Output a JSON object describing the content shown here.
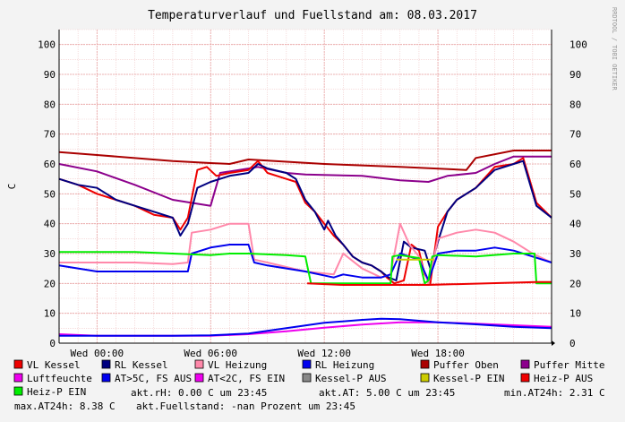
{
  "chart_data": {
    "type": "line",
    "title": "Temperaturverlauf und Fuellstand am: 08.03.2017",
    "ylabel": "C",
    "watermark": "RRDTOOL / TOBI OETIKER",
    "ylim": [
      0,
      105
    ],
    "yticks": [
      0,
      10,
      20,
      30,
      40,
      50,
      60,
      70,
      80,
      90,
      100
    ],
    "xlim": [
      -2,
      24
    ],
    "xticks": [
      {
        "x": 0,
        "label": "Wed 00:00"
      },
      {
        "x": 6,
        "label": "Wed 06:00"
      },
      {
        "x": 12,
        "label": "Wed 12:00"
      },
      {
        "x": 18,
        "label": "Wed 18:00"
      }
    ],
    "series": [
      {
        "name": "Puffer Oben",
        "color": "#aa0000",
        "points": [
          [
            -2,
            64
          ],
          [
            0,
            63
          ],
          [
            4,
            61
          ],
          [
            6,
            60.3
          ],
          [
            7,
            60
          ],
          [
            8,
            61.5
          ],
          [
            12,
            60
          ],
          [
            16,
            59
          ],
          [
            19.5,
            58
          ],
          [
            20,
            62
          ],
          [
            22,
            64.5
          ],
          [
            24,
            64.5
          ]
        ]
      },
      {
        "name": "Puffer Mitte",
        "color": "#8c008c",
        "points": [
          [
            -2,
            60
          ],
          [
            0,
            57.5
          ],
          [
            2,
            53
          ],
          [
            4,
            48
          ],
          [
            6,
            46
          ],
          [
            6.5,
            57
          ],
          [
            7.5,
            58
          ],
          [
            8.5,
            59
          ],
          [
            10,
            57
          ],
          [
            11,
            56.5
          ],
          [
            14,
            56
          ],
          [
            16,
            54.5
          ],
          [
            17.5,
            54
          ],
          [
            18.5,
            56
          ],
          [
            20,
            57
          ],
          [
            21,
            60
          ],
          [
            22,
            62.5
          ],
          [
            24,
            62.5
          ]
        ]
      },
      {
        "name": "VL Kessel",
        "color": "#ee0000",
        "points": [
          [
            -2,
            55
          ],
          [
            -1,
            53
          ],
          [
            0,
            50
          ],
          [
            1,
            48
          ],
          [
            2,
            46
          ],
          [
            3,
            43
          ],
          [
            4,
            42
          ],
          [
            4.4,
            38
          ],
          [
            4.8,
            42
          ],
          [
            5.3,
            58
          ],
          [
            5.8,
            59
          ],
          [
            6.3,
            56
          ],
          [
            7,
            57
          ],
          [
            8,
            58
          ],
          [
            8.5,
            61
          ],
          [
            9,
            57
          ],
          [
            10,
            55
          ],
          [
            10.5,
            54
          ],
          [
            11,
            47
          ],
          [
            11.5,
            44
          ],
          [
            12,
            40
          ],
          [
            12.5,
            36
          ],
          [
            13,
            33
          ],
          [
            13.5,
            29
          ],
          [
            14,
            27
          ],
          [
            14.5,
            26
          ],
          [
            15,
            24
          ],
          [
            15.3,
            22
          ],
          [
            15.7,
            20
          ],
          [
            16.2,
            21
          ],
          [
            16.6,
            33
          ],
          [
            17,
            31
          ],
          [
            17.3,
            23
          ],
          [
            17.6,
            20
          ],
          [
            18,
            39
          ],
          [
            18.5,
            44
          ],
          [
            19,
            48
          ],
          [
            20,
            52
          ],
          [
            21,
            59
          ],
          [
            22,
            60
          ],
          [
            22.5,
            62
          ],
          [
            23.2,
            47
          ],
          [
            24,
            42
          ]
        ]
      },
      {
        "name": "RL Kessel",
        "color": "#000080",
        "points": [
          [
            -2,
            55
          ],
          [
            -1,
            53
          ],
          [
            0,
            52
          ],
          [
            1,
            48
          ],
          [
            2,
            46
          ],
          [
            3,
            44
          ],
          [
            4,
            42
          ],
          [
            4.4,
            36
          ],
          [
            4.8,
            40
          ],
          [
            5.3,
            52
          ],
          [
            6,
            54
          ],
          [
            7,
            56
          ],
          [
            8,
            57
          ],
          [
            8.5,
            60
          ],
          [
            9,
            58.5
          ],
          [
            10,
            57
          ],
          [
            10.5,
            55
          ],
          [
            11,
            48
          ],
          [
            11.5,
            44
          ],
          [
            12,
            38
          ],
          [
            12.2,
            41
          ],
          [
            12.6,
            36
          ],
          [
            13,
            33
          ],
          [
            13.5,
            29
          ],
          [
            14,
            27
          ],
          [
            14.5,
            26
          ],
          [
            15,
            24
          ],
          [
            15.4,
            22
          ],
          [
            15.8,
            21
          ],
          [
            16.2,
            34
          ],
          [
            16.6,
            32
          ],
          [
            17.3,
            31
          ],
          [
            17.6,
            25
          ],
          [
            18,
            34
          ],
          [
            18.5,
            44
          ],
          [
            19,
            48
          ],
          [
            20,
            52
          ],
          [
            21,
            58
          ],
          [
            22,
            60
          ],
          [
            22.5,
            61
          ],
          [
            23.2,
            46
          ],
          [
            24,
            42
          ]
        ]
      },
      {
        "name": "VL Heizung",
        "color": "#ff88aa",
        "points": [
          [
            -2,
            27
          ],
          [
            0,
            27
          ],
          [
            2,
            27
          ],
          [
            4,
            26.5
          ],
          [
            4.8,
            27
          ],
          [
            5,
            37
          ],
          [
            6,
            38
          ],
          [
            7,
            40
          ],
          [
            8,
            40
          ],
          [
            8.3,
            28
          ],
          [
            9,
            27
          ],
          [
            11,
            24
          ],
          [
            12.5,
            23
          ],
          [
            13,
            30
          ],
          [
            14,
            25
          ],
          [
            15,
            22
          ],
          [
            15.5,
            23
          ],
          [
            16,
            40
          ],
          [
            16.5,
            33
          ],
          [
            17,
            29
          ],
          [
            17.5,
            20
          ],
          [
            18,
            35
          ],
          [
            19,
            37
          ],
          [
            20,
            38
          ],
          [
            21,
            37
          ],
          [
            22,
            34
          ],
          [
            23,
            30
          ],
          [
            24,
            27
          ]
        ]
      },
      {
        "name": "RL Heizung",
        "color": "#0000ee",
        "points": [
          [
            -2,
            26
          ],
          [
            0,
            24
          ],
          [
            2,
            24
          ],
          [
            4,
            24
          ],
          [
            4.8,
            24
          ],
          [
            5,
            30
          ],
          [
            6,
            32
          ],
          [
            7,
            33
          ],
          [
            8,
            33
          ],
          [
            8.3,
            27
          ],
          [
            9,
            26
          ],
          [
            11,
            24
          ],
          [
            12.5,
            22
          ],
          [
            13,
            23
          ],
          [
            14,
            22
          ],
          [
            15,
            22
          ],
          [
            15.5,
            23
          ],
          [
            16,
            30
          ],
          [
            16.5,
            29
          ],
          [
            17,
            28
          ],
          [
            17.5,
            21
          ],
          [
            18,
            30
          ],
          [
            19,
            31
          ],
          [
            20,
            31
          ],
          [
            21,
            32
          ],
          [
            22,
            31
          ],
          [
            23,
            29
          ],
          [
            24,
            27
          ]
        ]
      },
      {
        "name": "Heiz-P EIN",
        "color": "#00ee00",
        "points": [
          [
            -2,
            30.5
          ],
          [
            2,
            30.5
          ],
          [
            4,
            30
          ],
          [
            6,
            29.5
          ],
          [
            7,
            30
          ],
          [
            8,
            30
          ],
          [
            10,
            29.5
          ],
          [
            11,
            29
          ],
          [
            11.3,
            20
          ],
          [
            11.4,
            20
          ],
          [
            15.5,
            20
          ],
          [
            15.6,
            29
          ],
          [
            16,
            29.5
          ],
          [
            17,
            28.5
          ],
          [
            17.3,
            20
          ],
          [
            17.5,
            21
          ],
          [
            17.7,
            29
          ],
          [
            18,
            29.5
          ],
          [
            20,
            29
          ],
          [
            22,
            30
          ],
          [
            23.1,
            30
          ],
          [
            23.2,
            20
          ],
          [
            24,
            20
          ]
        ]
      },
      {
        "name": "Heiz-P AUS",
        "color": "#ee0000",
        "points": [
          [
            11.1,
            20
          ],
          [
            13,
            19.5
          ],
          [
            15.5,
            19.5
          ],
          [
            16.8,
            19.5
          ],
          [
            17.5,
            19.5
          ],
          [
            23.2,
            20.5
          ],
          [
            24,
            20.5
          ]
        ]
      },
      {
        "name": "Luftfeuchte",
        "color": "#ee00ee",
        "points": [
          [
            -2,
            3
          ],
          [
            0,
            2.5
          ],
          [
            2,
            2.5
          ],
          [
            4,
            2.5
          ],
          [
            6,
            2.5
          ],
          [
            8,
            3
          ],
          [
            10,
            4
          ],
          [
            12,
            5.2
          ],
          [
            14,
            6.2
          ],
          [
            16,
            7
          ],
          [
            18,
            7
          ],
          [
            20,
            6.5
          ],
          [
            22,
            6
          ],
          [
            24,
            5.5
          ]
        ]
      },
      {
        "name": "AT>5C, FS AUS",
        "color": "#0000ee",
        "points": [
          [
            -2,
            2.5
          ],
          [
            0,
            2.5
          ],
          [
            4,
            2.5
          ],
          [
            6,
            2.6
          ],
          [
            8,
            3.2
          ],
          [
            10,
            5
          ],
          [
            12,
            6.8
          ],
          [
            14,
            7.8
          ],
          [
            15,
            8.2
          ],
          [
            16,
            8
          ],
          [
            18,
            7
          ],
          [
            20,
            6.3
          ],
          [
            22,
            5.5
          ],
          [
            24,
            5
          ]
        ]
      },
      {
        "name": "Kessel-P EIN",
        "color": "#cccc00",
        "points": [
          [
            15.8,
            28
          ],
          [
            17,
            28
          ],
          [
            17.8,
            28
          ]
        ]
      }
    ],
    "legend": [
      {
        "label": "VL Kessel",
        "color": "#ee0000"
      },
      {
        "label": "RL Kessel",
        "color": "#000080"
      },
      {
        "label": "VL Heizung",
        "color": "#ff88aa"
      },
      {
        "label": "RL Heizung",
        "color": "#0000ee"
      },
      {
        "label": "Puffer Oben",
        "color": "#aa0000"
      },
      {
        "label": "Puffer Mitte",
        "color": "#8c008c"
      },
      {
        "label": "Luftfeuchte",
        "color": "#ee00ee"
      },
      {
        "label": "AT>5C, FS AUS",
        "color": "#0000ee"
      },
      {
        "label": "AT<2C, FS EIN",
        "color": "#ee00ee"
      },
      {
        "label": "Kessel-P AUS",
        "color": "#888888"
      },
      {
        "label": "Kessel-P EIN",
        "color": "#cccc00"
      },
      {
        "label": "Heiz-P AUS",
        "color": "#ee0000"
      },
      {
        "label": "Heiz-P EIN",
        "color": "#00ee00"
      }
    ],
    "stats": {
      "akt_rh": "akt.rH: 0.00 C um 23:45",
      "akt_at": "akt.AT: 5.00 C um 23:45",
      "min_at24h": "min.AT24h: 2.31 C",
      "max_at24h": "max.AT24h: 8.38 C",
      "akt_fuellstand": "akt.Fuellstand: -nan Prozent um 23:45"
    }
  }
}
